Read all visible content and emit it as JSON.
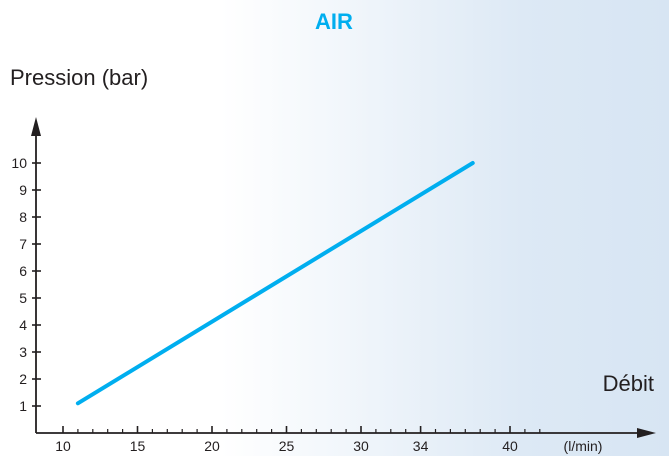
{
  "chart_data": {
    "type": "line",
    "title": "AIR",
    "ylabel": "Pression (bar)",
    "xlabel": "Débit",
    "x_unit": "(l/min)",
    "x_ticks": [
      "10",
      "15",
      "20",
      "25",
      "30",
      "34",
      "40"
    ],
    "y_ticks": [
      "1",
      "2",
      "3",
      "4",
      "5",
      "6",
      "7",
      "8",
      "9",
      "10"
    ],
    "series": [
      {
        "x": [
          11,
          37.5
        ],
        "y": [
          1.1,
          10
        ]
      }
    ],
    "xlim": [
      8.5,
      43
    ],
    "ylim": [
      0,
      10
    ],
    "grid": false,
    "colors": {
      "title": "#00aeef",
      "line": "#00aeef",
      "axis": "#231f20"
    }
  }
}
